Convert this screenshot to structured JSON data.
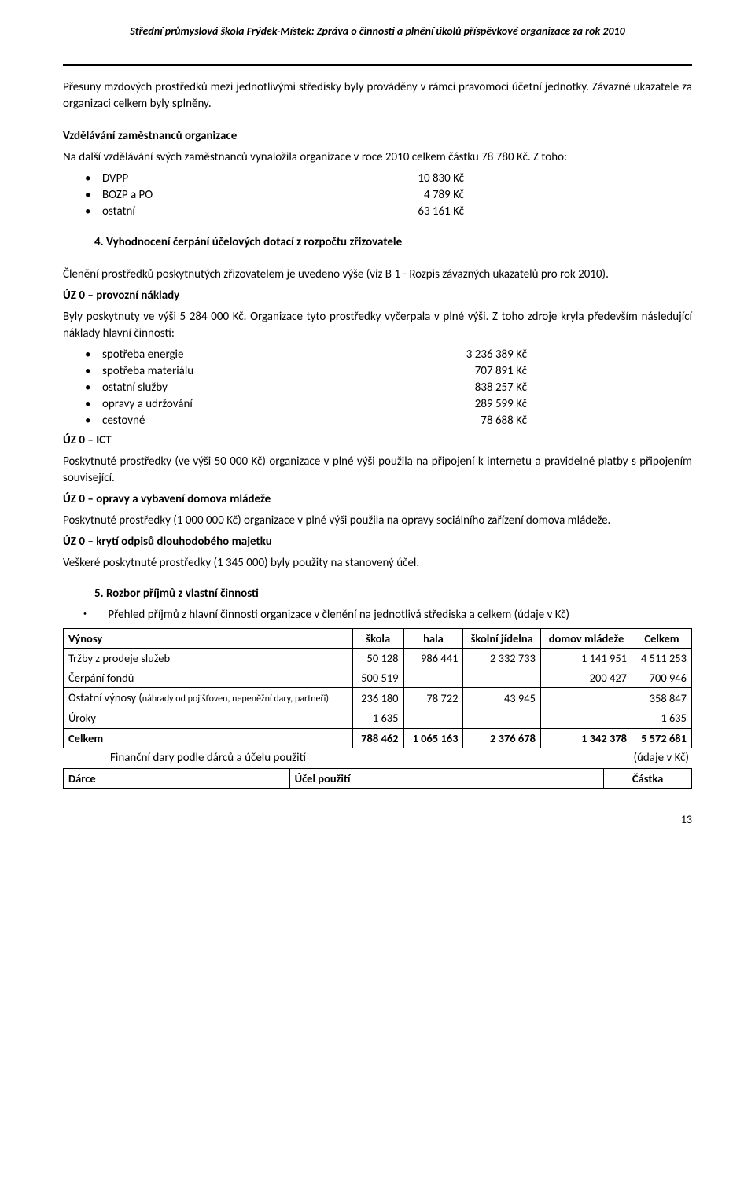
{
  "header": "Střední průmyslová škola Frýdek-Místek: Zpráva o činnosti a plnění úkolů příspěvkové organizace za rok 2010",
  "para1": "Přesuny mzdových prostředků mezi jednotlivými středisky byly prováděny v rámci pravomoci účetní jednotky. Závazné ukazatele za organizaci celkem byly splněny.",
  "edu_title": "Vzdělávání zaměstnanců organizace",
  "edu_text": "Na další vzdělávání svých zaměstnanců vynaložila organizace v roce 2010 celkem částku 78 780 Kč. Z toho:",
  "edu_items": [
    {
      "label": "DVPP",
      "value": "10 830 Kč"
    },
    {
      "label": "BOZP a PO",
      "value": "4 789 Kč"
    },
    {
      "label": "ostatní",
      "value": "63 161 Kč"
    }
  ],
  "sec4_title": "4. Vyhodnocení čerpání účelových dotací z rozpočtu zřizovatele",
  "sec4_p1": "Členění prostředků poskytnutých zřizovatelem je uvedeno výše (viz B 1 - Rozpis závazných ukazatelů pro rok 2010).",
  "uz0_prov_title": "ÚZ 0 – provozní náklady",
  "uz0_prov_text": "Byly poskytnuty ve výši 5 284 000 Kč. Organizace tyto prostředky vyčerpala v plné výši. Z toho zdroje kryla především následující náklady hlavní činnosti:",
  "uz0_items": [
    {
      "label": "spotřeba energie",
      "value": "3 236 389 Kč"
    },
    {
      "label": "spotřeba materiálu",
      "value": "707 891 Kč"
    },
    {
      "label": "ostatní služby",
      "value": "838 257 Kč"
    },
    {
      "label": "opravy a udržování",
      "value": "289 599 Kč"
    },
    {
      "label": "cestovné",
      "value": "78 688 Kč"
    }
  ],
  "uz0_ict_title": "ÚZ 0 – ICT",
  "uz0_ict_text": "Poskytnuté prostředky (ve výši 50 000 Kč) organizace v plné výši použila na připojení k internetu a pravidelné platby s připojením související.",
  "uz0_op_title": "ÚZ 0 – opravy a vybavení domova mládeže",
  "uz0_op_text": "Poskytnuté prostředky (1 000 000 Kč) organizace v plné výši použila na opravy sociálního zařízení domova mládeže.",
  "uz0_kryti_title": "ÚZ 0 – krytí odpisů dlouhodobého majetku",
  "uz0_kryti_text": "Veškeré poskytnuté prostředky (1 345 000) byly použity na stanovený účel.",
  "sec5_title": "5. Rozbor příjmů z vlastní činnosti",
  "sec5_sub": "Přehled příjmů z hlavní činnosti organizace v členění na jednotlivá střediska a celkem (údaje v Kč)",
  "sec5_sub_line2": "v Kč)",
  "table1": {
    "headers": [
      "Výnosy",
      "škola",
      "hala",
      "školní jídelna",
      "domov mládeže",
      "Celkem"
    ],
    "rows": [
      {
        "label": "Tržby z prodeje služeb",
        "c": [
          "50 128",
          "986 441",
          "2 332 733",
          "1 141 951",
          "4 511 253"
        ]
      },
      {
        "label": "Čerpání fondů",
        "c": [
          "500 519",
          "",
          "",
          "200 427",
          "700 946"
        ]
      },
      {
        "label": "Ostatní výnosy (",
        "small": "náhrady od pojišťoven, nepeněžní dary, partneři)",
        "c": [
          "236 180",
          "78 722",
          "43 945",
          "",
          "358 847"
        ]
      },
      {
        "label": "Úroky",
        "c": [
          "1 635",
          "",
          "",
          "",
          "1 635"
        ]
      },
      {
        "label": "Celkem",
        "bold": true,
        "c": [
          "788 462",
          "1 065 163",
          "2 376 678",
          "1 342 378",
          "5 572 681"
        ]
      }
    ]
  },
  "fin_dary_left": "Finanční dary podle dárců a účelu použití",
  "fin_dary_right": "(údaje v Kč)",
  "table2": {
    "headers": [
      "Dárce",
      "Účel použití",
      "Částka"
    ]
  },
  "page_num": "13"
}
